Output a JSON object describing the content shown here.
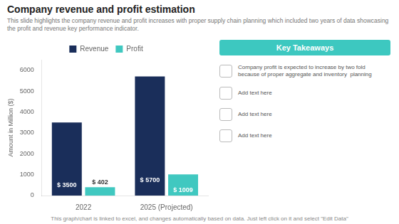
{
  "chart_data": {
    "type": "bar",
    "title": "Company revenue and profit estimation",
    "subtitle": "This slide highlights the company revenue and profit increases with proper supply chain planning which included two years of data showcasing the profit and revenue key performance indicator.",
    "categories": [
      "2022",
      "2025 (Projected)"
    ],
    "series": [
      {
        "name": "Revenue",
        "color": "#1a2e5a",
        "values": [
          3500,
          5700
        ],
        "value_labels": [
          "$ 3500",
          "$ 5700"
        ]
      },
      {
        "name": "Profit",
        "color": "#40c8c0",
        "values": [
          402,
          1009
        ],
        "value_labels": [
          "$ 402",
          "$ 1009"
        ]
      }
    ],
    "ylabel": "Amount in Million ($)",
    "ylim": [
      0,
      6500
    ],
    "yticks": [
      0,
      1000,
      2000,
      3000,
      4000,
      5000,
      6000
    ],
    "grid": false,
    "legend": "top",
    "data_labels": true,
    "annotations": [
      "Key Takeaways",
      "Company profit is expected to increase by two fold\nbecause of proper aggregate and inventory  planning",
      "Add text here",
      "Add text here",
      "Add text here"
    ],
    "footer": "This graph/chart is linked to excel, and changes automatically based on data. Just left click on it and select \"Edit Data\""
  }
}
